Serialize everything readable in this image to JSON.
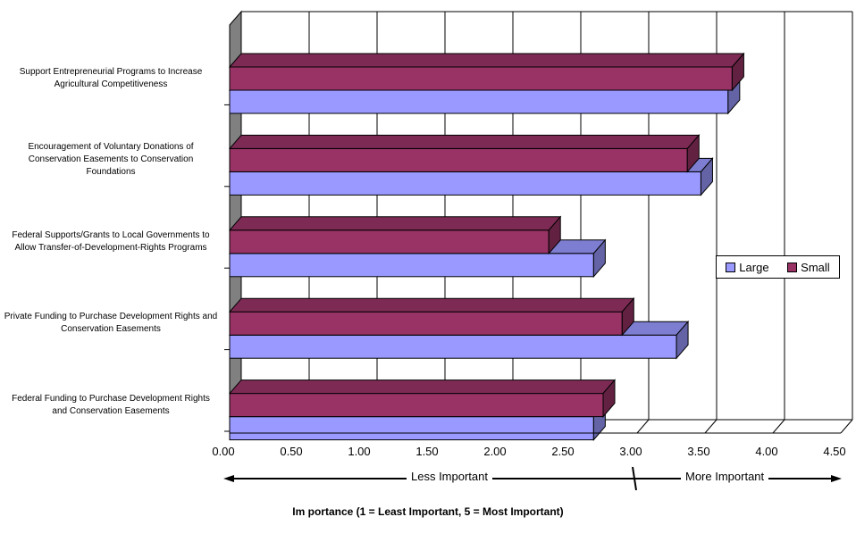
{
  "chart_data": {
    "type": "bar",
    "orientation": "horizontal",
    "style": "3d",
    "categories": [
      "Support Entrepreneurial Programs to Increase Agricultural Competitiveness",
      "Encouragement of Voluntary Donations of Conservation Easements to Conservation Foundations",
      "Federal Supports/Grants to Local Governments to Allow Transfer-of-Development-Rights Programs",
      "Private Funding to Purchase Development Rights and Conservation Easements",
      "Federal Funding to Purchase Development Rights and Conservation Easements"
    ],
    "series": [
      {
        "name": "Large",
        "values": [
          3.67,
          3.47,
          2.68,
          3.29,
          2.68
        ],
        "color": "#9999ff"
      },
      {
        "name": "Small",
        "values": [
          3.7,
          3.37,
          2.35,
          2.89,
          2.75
        ],
        "color": "#993366"
      }
    ],
    "xlim": [
      0,
      4.5
    ],
    "ticks": [
      "0.00",
      "0.50",
      "1.00",
      "1.50",
      "2.00",
      "2.50",
      "3.00",
      "3.50",
      "4.00",
      "4.50"
    ],
    "tick_values": [
      0,
      0.5,
      1,
      1.5,
      2,
      2.5,
      3,
      3.5,
      4,
      4.5
    ],
    "xlabel": "Im portance (1 = Least Important, 5 = Most Important)",
    "grid": true,
    "legend_position": "right",
    "annotations": {
      "left_text": "Less Important",
      "right_text": "More  Important",
      "divider_value": 3.0
    }
  }
}
